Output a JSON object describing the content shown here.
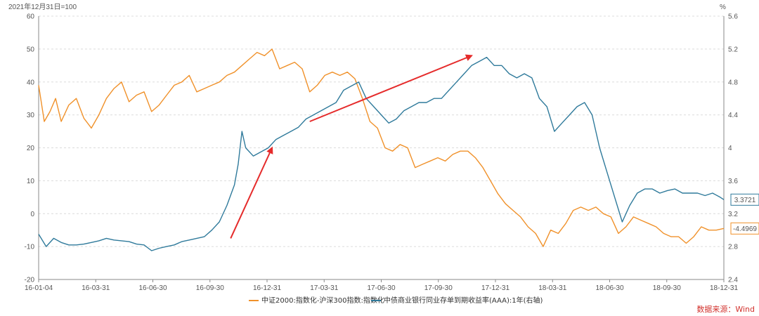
{
  "chart_data": {
    "type": "line",
    "note_left": "2021年12月31日=100",
    "unit_right": "%",
    "x_ticks": [
      "16-01-04",
      "16-03-31",
      "16-06-30",
      "16-09-30",
      "16-12-31",
      "17-03-31",
      "17-06-30",
      "17-09-30",
      "17-12-31",
      "18-03-31",
      "18-06-30",
      "18-09-30",
      "18-12-31"
    ],
    "y_left": {
      "min": -20,
      "max": 60,
      "ticks": [
        -20,
        -10,
        0,
        10,
        20,
        30,
        40,
        50,
        60
      ]
    },
    "y_right": {
      "min": 2.4,
      "max": 5.6,
      "ticks": [
        "2.4",
        "2.8",
        "3.2",
        "3.6",
        "4",
        "4.4",
        "4.8",
        "5.2",
        "5.6"
      ]
    },
    "grid": true,
    "legend_position": "bottom",
    "series": [
      {
        "name": "中证2000:指数化-沪深300指数:指数化",
        "axis": "left",
        "color": "#f0912a",
        "last_label": "-4.4969",
        "points": [
          [
            0,
            39
          ],
          [
            3,
            28
          ],
          [
            6,
            31
          ],
          [
            9,
            35
          ],
          [
            12,
            28
          ],
          [
            16,
            33
          ],
          [
            20,
            35
          ],
          [
            24,
            29
          ],
          [
            28,
            26
          ],
          [
            32,
            30
          ],
          [
            36,
            35
          ],
          [
            40,
            38
          ],
          [
            44,
            40
          ],
          [
            48,
            34
          ],
          [
            52,
            36
          ],
          [
            56,
            37
          ],
          [
            60,
            31
          ],
          [
            64,
            33
          ],
          [
            68,
            36
          ],
          [
            72,
            39
          ],
          [
            76,
            40
          ],
          [
            80,
            42
          ],
          [
            84,
            37
          ],
          [
            88,
            38
          ],
          [
            92,
            39
          ],
          [
            96,
            40
          ],
          [
            100,
            42
          ],
          [
            104,
            43
          ],
          [
            108,
            45
          ],
          [
            112,
            47
          ],
          [
            116,
            49
          ],
          [
            120,
            48
          ],
          [
            124,
            50
          ],
          [
            128,
            44
          ],
          [
            132,
            45
          ],
          [
            136,
            46
          ],
          [
            140,
            44
          ],
          [
            144,
            37
          ],
          [
            148,
            39
          ],
          [
            152,
            42
          ],
          [
            156,
            43
          ],
          [
            160,
            42
          ],
          [
            164,
            43
          ],
          [
            168,
            41
          ],
          [
            172,
            35
          ],
          [
            176,
            28
          ],
          [
            180,
            26
          ],
          [
            184,
            20
          ],
          [
            188,
            19
          ],
          [
            192,
            21
          ],
          [
            196,
            20
          ],
          [
            200,
            14
          ],
          [
            204,
            15
          ],
          [
            208,
            16
          ],
          [
            212,
            17
          ],
          [
            216,
            16
          ],
          [
            220,
            18
          ],
          [
            224,
            19
          ],
          [
            228,
            19
          ],
          [
            232,
            17
          ],
          [
            236,
            14
          ],
          [
            240,
            10
          ],
          [
            244,
            6
          ],
          [
            248,
            3
          ],
          [
            252,
            1
          ],
          [
            256,
            -1
          ],
          [
            260,
            -4
          ],
          [
            264,
            -6
          ],
          [
            268,
            -10
          ],
          [
            272,
            -5
          ],
          [
            276,
            -6
          ],
          [
            280,
            -3
          ],
          [
            284,
            1
          ],
          [
            288,
            2
          ],
          [
            292,
            1
          ],
          [
            296,
            2
          ],
          [
            300,
            0
          ],
          [
            304,
            -1
          ],
          [
            308,
            -6
          ],
          [
            312,
            -4
          ],
          [
            316,
            -1
          ],
          [
            320,
            -2
          ],
          [
            324,
            -3
          ],
          [
            328,
            -4
          ],
          [
            332,
            -6
          ],
          [
            336,
            -7
          ],
          [
            340,
            -7
          ],
          [
            344,
            -9
          ],
          [
            348,
            -7
          ],
          [
            352,
            -4
          ],
          [
            356,
            -5
          ],
          [
            360,
            -5
          ],
          [
            364,
            -4.5
          ]
        ]
      },
      {
        "name": "中债商业银行同业存单到期收益率(AAA):1年(右轴)",
        "axis": "right",
        "color": "#2f7a9b",
        "last_label": "3.3721",
        "points": [
          [
            0,
            2.95
          ],
          [
            4,
            2.8
          ],
          [
            8,
            2.9
          ],
          [
            12,
            2.85
          ],
          [
            16,
            2.82
          ],
          [
            20,
            2.82
          ],
          [
            24,
            2.83
          ],
          [
            28,
            2.85
          ],
          [
            32,
            2.87
          ],
          [
            36,
            2.9
          ],
          [
            40,
            2.88
          ],
          [
            44,
            2.87
          ],
          [
            48,
            2.86
          ],
          [
            52,
            2.83
          ],
          [
            56,
            2.82
          ],
          [
            60,
            2.75
          ],
          [
            64,
            2.78
          ],
          [
            68,
            2.8
          ],
          [
            72,
            2.82
          ],
          [
            76,
            2.86
          ],
          [
            80,
            2.88
          ],
          [
            84,
            2.9
          ],
          [
            88,
            2.92
          ],
          [
            92,
            3.0
          ],
          [
            96,
            3.1
          ],
          [
            100,
            3.3
          ],
          [
            104,
            3.55
          ],
          [
            106,
            3.8
          ],
          [
            108,
            4.2
          ],
          [
            110,
            4.0
          ],
          [
            114,
            3.9
          ],
          [
            118,
            3.95
          ],
          [
            122,
            4.0
          ],
          [
            126,
            4.1
          ],
          [
            130,
            4.15
          ],
          [
            134,
            4.2
          ],
          [
            138,
            4.25
          ],
          [
            142,
            4.35
          ],
          [
            146,
            4.4
          ],
          [
            150,
            4.45
          ],
          [
            154,
            4.5
          ],
          [
            158,
            4.55
          ],
          [
            162,
            4.7
          ],
          [
            166,
            4.75
          ],
          [
            170,
            4.8
          ],
          [
            174,
            4.6
          ],
          [
            178,
            4.5
          ],
          [
            182,
            4.4
          ],
          [
            186,
            4.3
          ],
          [
            190,
            4.35
          ],
          [
            194,
            4.45
          ],
          [
            198,
            4.5
          ],
          [
            202,
            4.55
          ],
          [
            206,
            4.55
          ],
          [
            210,
            4.6
          ],
          [
            214,
            4.6
          ],
          [
            218,
            4.7
          ],
          [
            222,
            4.8
          ],
          [
            226,
            4.9
          ],
          [
            230,
            5.0
          ],
          [
            234,
            5.05
          ],
          [
            238,
            5.1
          ],
          [
            242,
            5.0
          ],
          [
            246,
            5.0
          ],
          [
            250,
            4.9
          ],
          [
            254,
            4.85
          ],
          [
            258,
            4.9
          ],
          [
            262,
            4.85
          ],
          [
            266,
            4.6
          ],
          [
            270,
            4.5
          ],
          [
            274,
            4.2
          ],
          [
            278,
            4.3
          ],
          [
            282,
            4.4
          ],
          [
            286,
            4.5
          ],
          [
            290,
            4.55
          ],
          [
            294,
            4.4
          ],
          [
            298,
            4.0
          ],
          [
            302,
            3.7
          ],
          [
            306,
            3.4
          ],
          [
            310,
            3.1
          ],
          [
            314,
            3.3
          ],
          [
            318,
            3.45
          ],
          [
            322,
            3.5
          ],
          [
            326,
            3.5
          ],
          [
            330,
            3.45
          ],
          [
            334,
            3.48
          ],
          [
            338,
            3.5
          ],
          [
            342,
            3.45
          ],
          [
            346,
            3.45
          ],
          [
            350,
            3.45
          ],
          [
            354,
            3.42
          ],
          [
            358,
            3.45
          ],
          [
            362,
            3.4
          ],
          [
            364,
            3.37
          ]
        ]
      }
    ],
    "arrows": [
      {
        "from": [
          102,
          2.9
        ],
        "to": [
          124,
          20
        ]
      },
      {
        "from": [
          144,
          28
        ],
        "to": [
          230,
          48
        ]
      }
    ],
    "legend": [
      "中证2000:指数化-沪深300指数:指数化",
      "中债商业银行同业存单到期收益率(AAA):1年(右轴)"
    ],
    "source": "数据来源：Wind"
  }
}
